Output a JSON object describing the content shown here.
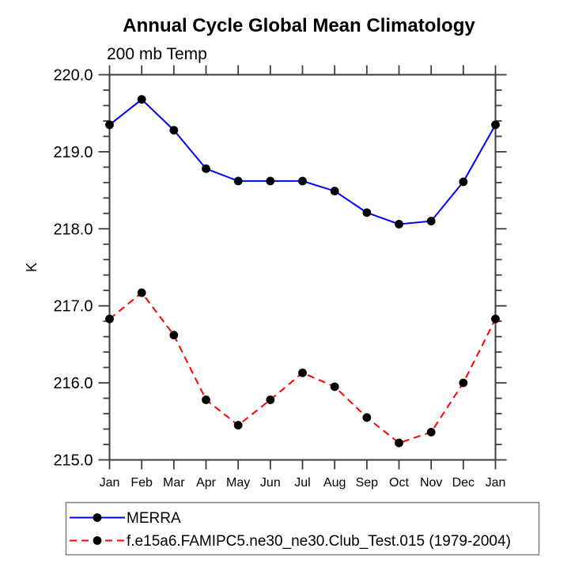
{
  "chart_data": {
    "type": "line",
    "title": "Annual Cycle Global Mean Climatology",
    "subtitle": "200 mb Temp",
    "ylabel": "K",
    "categories": [
      "Jan",
      "Feb",
      "Mar",
      "Apr",
      "May",
      "Jun",
      "Jul",
      "Aug",
      "Sep",
      "Oct",
      "Nov",
      "Dec",
      "Jan"
    ],
    "series": [
      {
        "name": "MERRA",
        "color": "#0000ff",
        "style": "solid",
        "marker": "filled-circle",
        "marker_color": "#000000",
        "values": [
          219.35,
          219.68,
          219.28,
          218.78,
          218.62,
          218.62,
          218.62,
          218.49,
          218.21,
          218.06,
          218.1,
          218.61,
          219.35
        ]
      },
      {
        "name": "f.e15a6.FAMIPC5.ne30_ne30.Club_Test.015 (1979-2004)",
        "color": "#ff0000",
        "style": "dashed",
        "marker": "filled-circle",
        "marker_color": "#000000",
        "values": [
          216.83,
          217.17,
          216.62,
          215.78,
          215.45,
          215.78,
          216.13,
          215.95,
          215.55,
          215.22,
          215.36,
          216.0,
          216.83
        ]
      }
    ],
    "ylim": [
      215.0,
      220.0
    ],
    "y_major_step": 1.0,
    "y_minor_step": 0.2,
    "y_tick_labels": [
      "215.0",
      "216.0",
      "217.0",
      "218.0",
      "219.0",
      "220.0"
    ],
    "grid": false,
    "legend_position": "bottom-left-box",
    "axis_color": "#3d3d3d",
    "legend_border_color": "#7f7f7f",
    "background_color": "#ffffff"
  }
}
